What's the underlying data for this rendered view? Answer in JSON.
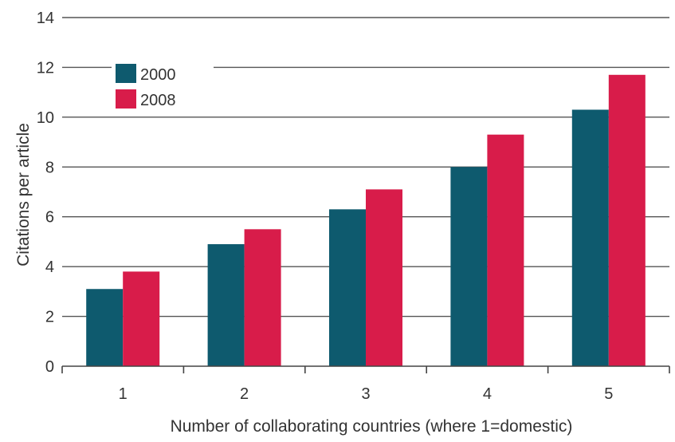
{
  "chart_data": {
    "type": "bar",
    "title": "",
    "xlabel": "Number of collaborating countries (where 1=domestic)",
    "ylabel": "Citations per article",
    "categories": [
      "1",
      "2",
      "3",
      "4",
      "5"
    ],
    "ylim": [
      0,
      14
    ],
    "yticks": [
      0,
      2,
      4,
      6,
      8,
      10,
      12,
      14
    ],
    "grid": true,
    "legend_position": "top-left",
    "series": [
      {
        "name": "2000",
        "color": "#0e5a6e",
        "values": [
          3.1,
          4.9,
          6.3,
          8.0,
          10.3
        ]
      },
      {
        "name": "2008",
        "color": "#d81c4a",
        "values": [
          3.8,
          5.5,
          7.1,
          9.3,
          11.7
        ]
      }
    ]
  }
}
